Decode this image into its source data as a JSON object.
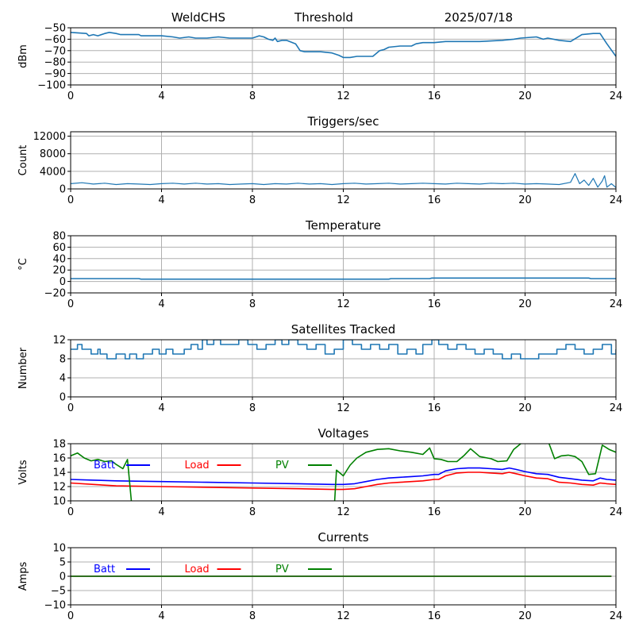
{
  "header": {
    "station": "WeldCHS",
    "mode": "Threshold",
    "date": "2025/07/18"
  },
  "colors": {
    "series": "#1f77b4",
    "batt": "#0000ff",
    "load": "#ff0000",
    "pv": "#008000",
    "grid": "#b0b0b0"
  },
  "chart_data": [
    {
      "id": "rssi",
      "type": "line",
      "title": "",
      "ylabel": "dBm",
      "xlim": [
        0,
        24
      ],
      "ylim": [
        -100,
        -50
      ],
      "yticks": [
        -50,
        -60,
        -70,
        -80,
        -90,
        -100
      ],
      "xticks": [
        0,
        4,
        8,
        12,
        16,
        20,
        24
      ],
      "grid": true,
      "series": [
        {
          "color": "#1f77b4",
          "width": 1.6,
          "x": [
            0,
            0.7,
            0.8,
            1.0,
            1.2,
            1.5,
            1.7,
            2.0,
            2.2,
            3.0,
            3.1,
            4.0,
            4.5,
            4.8,
            5.2,
            5.5,
            6.0,
            6.5,
            7.0,
            7.5,
            8.0,
            8.3,
            8.5,
            8.7,
            8.9,
            9.0,
            9.1,
            9.3,
            9.5,
            9.9,
            10.1,
            10.3,
            10.5,
            11.0,
            11.5,
            11.8,
            12.0,
            12.3,
            12.6,
            13.0,
            13.3,
            13.6,
            13.8,
            14.0,
            14.5,
            15.0,
            15.2,
            15.5,
            16.0,
            16.5,
            17.0,
            18.0,
            19.0,
            19.5,
            19.8,
            20.5,
            20.8,
            21.0,
            21.5,
            22.0,
            22.5,
            23.0,
            23.3,
            23.6,
            24.0
          ],
          "y": [
            -54,
            -55,
            -57,
            -56,
            -57,
            -55,
            -54,
            -55,
            -56,
            -56,
            -57,
            -57,
            -58,
            -59,
            -58,
            -59,
            -59,
            -58,
            -59,
            -59,
            -59,
            -57,
            -58,
            -60,
            -61,
            -59,
            -62,
            -61,
            -61,
            -64,
            -70,
            -71,
            -71,
            -71,
            -72,
            -74,
            -76,
            -76,
            -75,
            -75,
            -75,
            -70,
            -69,
            -67,
            -66,
            -66,
            -64,
            -63,
            -63,
            -62,
            -62,
            -62,
            -61,
            -60,
            -59,
            -58,
            -60,
            -59,
            -61,
            -62,
            -56,
            -55,
            -55,
            -64,
            -75
          ]
        }
      ],
      "legend": null
    },
    {
      "id": "triggers",
      "type": "line",
      "title": "Triggers/sec",
      "ylabel": "Count",
      "xlim": [
        0,
        24
      ],
      "ylim": [
        0,
        13000
      ],
      "yticks": [
        0,
        4000,
        8000,
        12000
      ],
      "xticks": [
        0,
        4,
        8,
        12,
        16,
        20,
        24
      ],
      "grid": true,
      "series": [
        {
          "color": "#1f77b4",
          "width": 1.2,
          "x": [
            0,
            0.5,
            1,
            1.5,
            2,
            2.5,
            3,
            3.5,
            4,
            4.5,
            5,
            5.5,
            6,
            6.5,
            7,
            7.5,
            8,
            8.5,
            9,
            9.5,
            10,
            10.5,
            11,
            11.5,
            12,
            12.5,
            13,
            13.5,
            14,
            14.5,
            15,
            15.5,
            16,
            16.5,
            17,
            17.5,
            18,
            18.5,
            19,
            19.5,
            20,
            20.5,
            21,
            21.5,
            22,
            22.2,
            22.4,
            22.6,
            22.8,
            23,
            23.2,
            23.4,
            23.5,
            23.6,
            23.8,
            24
          ],
          "y": [
            1200,
            1400,
            1100,
            1300,
            1000,
            1200,
            1100,
            1000,
            1200,
            1300,
            1100,
            1300,
            1100,
            1200,
            1000,
            1100,
            1200,
            1000,
            1200,
            1100,
            1300,
            1100,
            1200,
            1000,
            1200,
            1300,
            1100,
            1200,
            1300,
            1100,
            1200,
            1300,
            1200,
            1100,
            1300,
            1200,
            1100,
            1300,
            1200,
            1300,
            1100,
            1200,
            1100,
            1000,
            1500,
            3500,
            1200,
            2000,
            800,
            2400,
            400,
            1800,
            3000,
            400,
            1200,
            300
          ]
        }
      ],
      "legend": null
    },
    {
      "id": "temperature",
      "type": "line",
      "title": "Temperature",
      "ylabel": "°C",
      "xlim": [
        0,
        24
      ],
      "ylim": [
        -20,
        80
      ],
      "yticks": [
        -20,
        0,
        20,
        40,
        60,
        80
      ],
      "xticks": [
        0,
        4,
        8,
        12,
        16,
        20,
        24
      ],
      "grid": true,
      "series": [
        {
          "color": "#1f77b4",
          "width": 1.6,
          "x": [
            0,
            3.0,
            3.1,
            14.0,
            14.1,
            15.8,
            15.9,
            22.8,
            22.9,
            24
          ],
          "y": [
            5,
            5,
            4,
            4,
            5,
            5,
            6,
            6,
            5,
            5
          ]
        }
      ],
      "legend": null
    },
    {
      "id": "satellites",
      "type": "line",
      "title": "Satellites Tracked",
      "ylabel": "Number",
      "xlim": [
        0,
        24
      ],
      "ylim": [
        0,
        12
      ],
      "yticks": [
        0,
        4,
        8,
        12
      ],
      "xticks": [
        0,
        4,
        8,
        12,
        16,
        20,
        24
      ],
      "grid": true,
      "series": [
        {
          "color": "#1f77b4",
          "width": 1.6,
          "step": true,
          "x": [
            0,
            0.3,
            0.5,
            0.9,
            1.2,
            1.3,
            1.6,
            2,
            2.4,
            2.6,
            2.9,
            3.2,
            3.6,
            3.9,
            4.2,
            4.5,
            5,
            5.3,
            5.6,
            5.8,
            6,
            6.3,
            6.6,
            7,
            7.4,
            7.8,
            8.2,
            8.6,
            9,
            9.3,
            9.6,
            10,
            10.4,
            10.8,
            11.2,
            11.6,
            12,
            12.4,
            12.8,
            13.2,
            13.6,
            14,
            14.4,
            14.8,
            15.2,
            15.5,
            15.9,
            16.2,
            16.6,
            17,
            17.4,
            17.8,
            18.2,
            18.6,
            19,
            19.4,
            19.8,
            20.2,
            20.6,
            21,
            21.4,
            21.8,
            22.2,
            22.6,
            23,
            23.4,
            23.8,
            24
          ],
          "y": [
            10,
            11,
            10,
            9,
            10,
            9,
            8,
            9,
            8,
            9,
            8,
            9,
            10,
            9,
            10,
            9,
            10,
            11,
            10,
            12,
            11,
            12,
            11,
            11,
            12,
            11,
            10,
            11,
            12,
            11,
            12,
            11,
            10,
            11,
            9,
            10,
            12,
            11,
            10,
            11,
            10,
            11,
            9,
            10,
            9,
            11,
            12,
            11,
            10,
            11,
            10,
            9,
            10,
            9,
            8,
            9,
            8,
            8,
            9,
            9,
            10,
            11,
            10,
            9,
            10,
            11,
            9,
            10
          ]
        }
      ],
      "legend": null
    },
    {
      "id": "voltages",
      "type": "line",
      "title": "Voltages",
      "ylabel": "Volts",
      "xlim": [
        0,
        24
      ],
      "ylim": [
        10,
        18
      ],
      "yticks": [
        10,
        12,
        14,
        16,
        18
      ],
      "xticks": [
        0,
        4,
        8,
        12,
        16,
        20,
        24
      ],
      "grid": true,
      "series": [
        {
          "name": "Batt",
          "color": "#0000ff",
          "width": 1.6,
          "x": [
            0,
            1,
            2,
            4,
            6,
            8,
            10,
            11.5,
            12,
            12.5,
            13,
            13.5,
            14,
            14.5,
            15,
            15.5,
            16,
            16.2,
            16.5,
            17,
            17.5,
            18,
            18.5,
            19,
            19.3,
            19.6,
            20,
            20.5,
            21,
            21.5,
            22,
            22.5,
            23,
            23.3,
            23.6,
            24
          ],
          "y": [
            13,
            12.9,
            12.8,
            12.7,
            12.6,
            12.5,
            12.4,
            12.3,
            12.3,
            12.4,
            12.7,
            13,
            13.2,
            13.3,
            13.4,
            13.5,
            13.7,
            13.7,
            14.2,
            14.5,
            14.6,
            14.6,
            14.5,
            14.4,
            14.6,
            14.4,
            14.1,
            13.8,
            13.7,
            13.3,
            13.1,
            12.9,
            12.8,
            13.2,
            13,
            12.9
          ]
        },
        {
          "name": "Load",
          "color": "#ff0000",
          "width": 1.6,
          "x": [
            0,
            1,
            2,
            4,
            6,
            8,
            10,
            11.5,
            12,
            12.5,
            13,
            13.5,
            14,
            14.5,
            15,
            15.5,
            16,
            16.2,
            16.5,
            17,
            17.5,
            18,
            18.5,
            19,
            19.3,
            19.6,
            20,
            20.5,
            21,
            21.5,
            22,
            22.5,
            23,
            23.3,
            23.6,
            24
          ],
          "y": [
            12.5,
            12.3,
            12.1,
            12,
            11.9,
            11.8,
            11.7,
            11.6,
            11.6,
            11.7,
            12,
            12.3,
            12.5,
            12.6,
            12.7,
            12.8,
            13,
            13,
            13.5,
            13.9,
            14,
            14,
            13.9,
            13.8,
            14,
            13.8,
            13.5,
            13.2,
            13.1,
            12.6,
            12.5,
            12.3,
            12.2,
            12.5,
            12.4,
            12.3
          ]
        },
        {
          "name": "PV",
          "color": "#008000",
          "width": 1.6,
          "x": [
            0,
            0.3,
            0.6,
            0.9,
            1.2,
            1.5,
            1.8,
            2,
            2.3,
            2.5,
            2.7,
            11.6,
            11.7,
            12,
            12.3,
            12.6,
            13,
            13.5,
            14,
            14.5,
            15,
            15.5,
            15.8,
            16,
            16.3,
            16.6,
            17,
            17.3,
            17.6,
            18,
            18.5,
            18.8,
            19.2,
            19.5,
            20,
            20.5,
            21,
            21.3,
            21.6,
            21.9,
            22.2,
            22.5,
            22.8,
            23.1,
            23.4,
            23.7,
            24
          ],
          "y": [
            16.3,
            16.7,
            16,
            15.6,
            15.8,
            15.5,
            15.6,
            15.1,
            14.5,
            15.8,
            9,
            9,
            14.3,
            13.5,
            15,
            16,
            16.8,
            17.2,
            17.3,
            17,
            16.8,
            16.5,
            17.4,
            15.9,
            15.8,
            15.5,
            15.5,
            16.3,
            17.3,
            16.2,
            15.9,
            15.5,
            15.6,
            17.2,
            18.5,
            18.5,
            18.5,
            15.9,
            16.3,
            16.4,
            16.2,
            15.5,
            13.7,
            13.8,
            17.8,
            17.2,
            16.8
          ]
        }
      ],
      "legend": "top-left"
    },
    {
      "id": "currents",
      "type": "line",
      "title": "Currents",
      "ylabel": "Amps",
      "xlim": [
        0,
        24
      ],
      "ylim": [
        -10,
        10
      ],
      "yticks": [
        -10,
        -5,
        0,
        5,
        10
      ],
      "xticks": [
        0,
        4,
        8,
        12,
        16,
        20,
        24
      ],
      "grid": true,
      "series": [
        {
          "name": "Batt",
          "color": "#0000ff",
          "width": 1.6,
          "x": [
            0,
            23.8
          ],
          "y": [
            0,
            0
          ]
        },
        {
          "name": "Load",
          "color": "#ff0000",
          "width": 1.6,
          "x": [
            0,
            23.8
          ],
          "y": [
            0,
            0
          ]
        },
        {
          "name": "PV",
          "color": "#008000",
          "width": 1.6,
          "x": [
            0,
            23.8
          ],
          "y": [
            0,
            0
          ]
        }
      ],
      "legend": "top-left"
    }
  ]
}
